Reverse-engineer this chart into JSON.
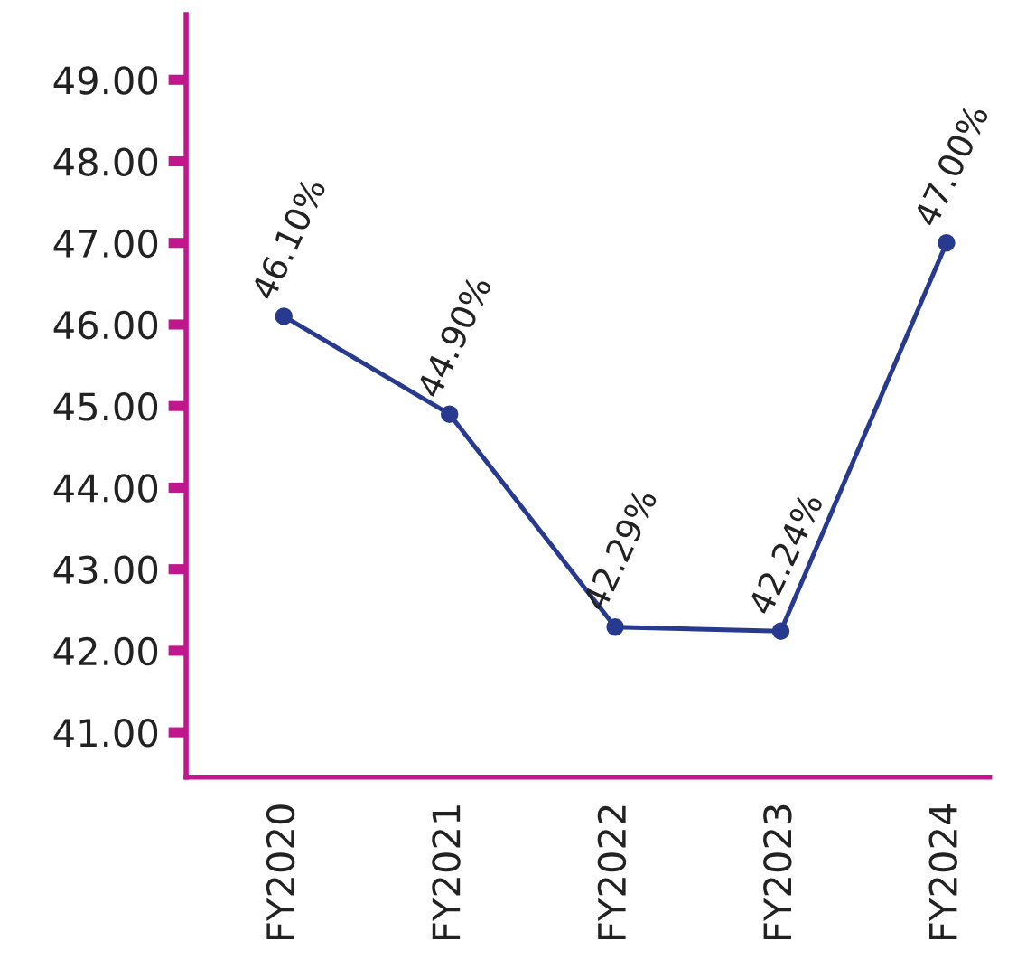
{
  "chart_data": {
    "type": "line",
    "categories": [
      "FY2020",
      "FY2021",
      "FY2022",
      "FY2023",
      "FY2024"
    ],
    "series": [
      {
        "color": "#283a8f",
        "values": [
          46.1,
          44.9,
          42.29,
          42.24,
          47.0
        ],
        "value_labels": [
          "46.10%",
          "44.90%",
          "42.29%",
          "42.24%",
          "47.00%"
        ]
      }
    ],
    "ylim": [
      40.45,
      49.8
    ],
    "yticks": [
      {
        "value": 41,
        "label": "41.00"
      },
      {
        "value": 42,
        "label": "42.00"
      },
      {
        "value": 43,
        "label": "43.00"
      },
      {
        "value": 44,
        "label": "44.00"
      },
      {
        "value": 45,
        "label": "45.00"
      },
      {
        "value": 46,
        "label": "46.00"
      },
      {
        "value": 47,
        "label": "47.00"
      },
      {
        "value": 48,
        "label": "48.00"
      },
      {
        "value": 49,
        "label": "49.00"
      }
    ],
    "marker": "circle",
    "line_style": "solid",
    "grid": false,
    "legend": false
  }
}
